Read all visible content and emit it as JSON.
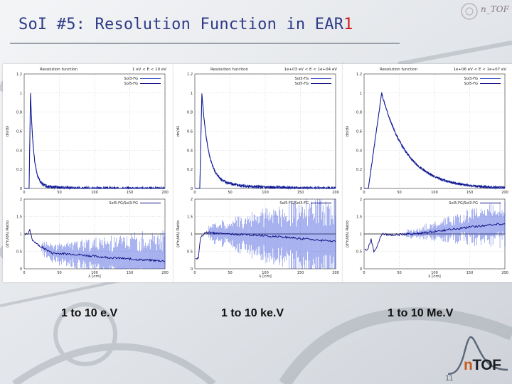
{
  "slide": {
    "title_main": "SoI #5: Resolution Function in EAR",
    "title_accent": "1",
    "page_number": "11",
    "logo_prefix": "n",
    "logo_suffix": "TOF",
    "emblem_text": "n_TOF"
  },
  "colors": {
    "title": "#2e3b86",
    "title_accent": "#d01818",
    "series_solid": "#3a4fc0",
    "series_fg": "#0a0a80",
    "error_bars": "#1f39d6"
  },
  "captions": [
    "1 to 10 e.V",
    "1 to 10 ke.V",
    "1 to 10 Me.V"
  ],
  "chart_data": [
    {
      "type": "line",
      "panel_title": "Resolution function",
      "energy_range": "1 eV < E < 10 eV",
      "top": {
        "ylabel": "dn/dλ",
        "xlim": [
          0,
          200
        ],
        "ylim": [
          0,
          1.2
        ],
        "yticks": [
          "0",
          "0.2",
          "0.4",
          "0.6",
          "0.8",
          "1",
          "1.2"
        ],
        "xticks": [
          "0",
          "50",
          "100",
          "150",
          "200"
        ],
        "legend": [
          "SoI3-FG",
          "SoI5-FG"
        ],
        "shape": {
          "peak_x": 9,
          "rise_start": 7,
          "tau": 4.5,
          "tail_amp": 0.05,
          "tail_tau": 25,
          "peak_y": 1.0
        },
        "noise": 0.015
      },
      "ratio": {
        "ylabel": "(d²n/dλ) Ratio",
        "legend": "SoI5-FG/SoI3-FG",
        "xlim": [
          0,
          200
        ],
        "ylim": [
          0,
          2
        ],
        "yticks": [
          "0",
          "0.5",
          "1",
          "1.5",
          "2"
        ],
        "xticks": [
          "0",
          "50",
          "100",
          "150",
          "200"
        ],
        "xlabel": "λ [cm]",
        "points": [
          [
            5,
            1.0
          ],
          [
            8,
            1.1
          ],
          [
            12,
            0.82
          ],
          [
            20,
            0.68
          ],
          [
            40,
            0.45
          ],
          [
            70,
            0.42
          ],
          [
            110,
            0.34
          ],
          [
            150,
            0.28
          ],
          [
            200,
            0.22
          ]
        ],
        "err_start": 25,
        "err_amp": 0.15,
        "err_grow": 0.55,
        "reference_line": 1
      }
    },
    {
      "type": "line",
      "panel_title": "Resolution function",
      "energy_range": "1e+03 eV < E < 1e+04 eV",
      "top": {
        "ylabel": "dn/dλ",
        "xlim": [
          0,
          200
        ],
        "ylim": [
          0,
          1.2
        ],
        "yticks": [
          "0",
          "0.2",
          "0.4",
          "0.6",
          "0.8",
          "1",
          "1.2"
        ],
        "xticks": [
          "0",
          "50",
          "100",
          "150",
          "200"
        ],
        "legend": [
          "SoI3-FG",
          "SoI5-FG"
        ],
        "shape": {
          "peak_x": 10,
          "rise_start": 7,
          "tau": 9,
          "tail_amp": 0.1,
          "tail_tau": 45,
          "peak_y": 1.0
        },
        "noise": 0.015
      },
      "ratio": {
        "ylabel": "(d²n/dλ) Ratio",
        "legend": "SoI5-FG/SoI3-FG",
        "xlim": [
          0,
          200
        ],
        "ylim": [
          0,
          2
        ],
        "yticks": [
          "0",
          "0.5",
          "1",
          "1.5",
          "2"
        ],
        "xticks": [
          "0",
          "50",
          "100",
          "150",
          "200"
        ],
        "xlabel": "λ [cm]",
        "points": [
          [
            5,
            0.3
          ],
          [
            8,
            0.88
          ],
          [
            14,
            1.05
          ],
          [
            40,
            1.0
          ],
          [
            80,
            0.98
          ],
          [
            120,
            0.92
          ],
          [
            160,
            0.85
          ],
          [
            200,
            0.78
          ]
        ],
        "err_start": 20,
        "err_amp": 0.18,
        "err_grow": 0.9,
        "reference_line": 1
      }
    },
    {
      "type": "line",
      "panel_title": "Resolution function",
      "energy_range": "1e+06 eV < E < 1e+07 eV",
      "top": {
        "ylabel": "dn/dλ",
        "xlim": [
          0,
          200
        ],
        "ylim": [
          0,
          1.2
        ],
        "yticks": [
          "0",
          "0.2",
          "0.4",
          "0.6",
          "0.8",
          "1",
          "1.2"
        ],
        "xticks": [
          "0",
          "50",
          "100",
          "150",
          "200"
        ],
        "legend": [
          "SoI3-FG",
          "SoI5-FG"
        ],
        "shape": {
          "peak_x": 25,
          "rise_start": 6,
          "tau": 36,
          "tail_amp": 0.0,
          "tail_tau": 60,
          "peak_y": 1.0
        },
        "noise": 0.012
      },
      "ratio": {
        "ylabel": "(d²n/dλ) Ratio",
        "legend": "SoI5-FG/SoI3-FG",
        "xlim": [
          0,
          200
        ],
        "ylim": [
          0,
          2
        ],
        "yticks": [
          "0",
          "0.5",
          "1",
          "1.5",
          "2"
        ],
        "xticks": [
          "0",
          "50",
          "100",
          "150",
          "200"
        ],
        "xlabel": "λ [cm]",
        "points": [
          [
            5,
            0.55
          ],
          [
            10,
            0.85
          ],
          [
            14,
            0.5
          ],
          [
            18,
            0.62
          ],
          [
            25,
            1.0
          ],
          [
            40,
            0.97
          ],
          [
            80,
            1.02
          ],
          [
            120,
            1.12
          ],
          [
            160,
            1.22
          ],
          [
            200,
            1.3
          ]
        ],
        "err_start": 60,
        "err_amp": 0.08,
        "err_grow": 0.45,
        "reference_line": 1
      }
    }
  ]
}
